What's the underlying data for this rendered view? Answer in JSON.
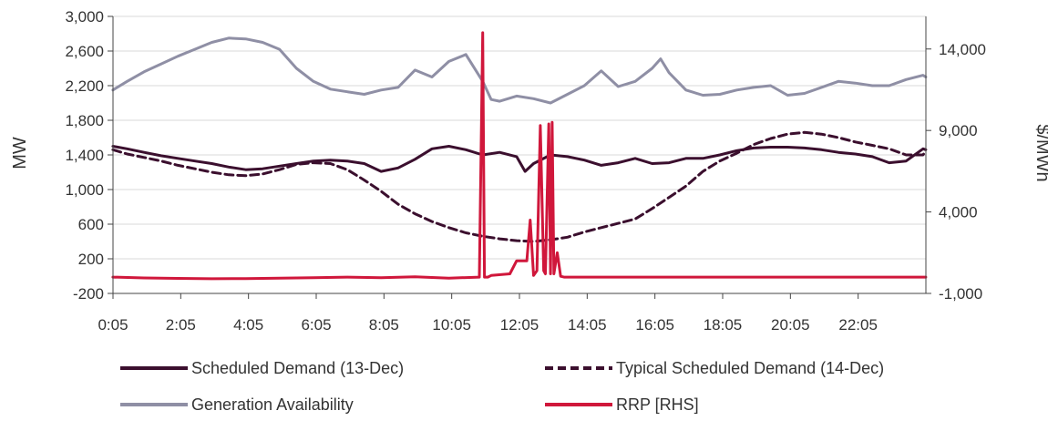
{
  "chart_data": {
    "type": "line",
    "title": "",
    "xlabel": "",
    "ylabel": "MW",
    "y2label": "$/MWh",
    "ylim": [
      -200,
      3000
    ],
    "y2lim": [
      -1000,
      16000
    ],
    "yticks": [
      -200,
      200,
      600,
      1000,
      1400,
      1800,
      2200,
      2600,
      3000
    ],
    "ytick_labels": [
      "-200",
      "200",
      "600",
      "1,000",
      "1,400",
      "1,800",
      "2,200",
      "2,600",
      "3,000"
    ],
    "y2ticks": [
      -1000,
      4000,
      9000,
      14000
    ],
    "y2tick_labels": [
      "-1,000",
      "4,000",
      "9,000",
      "14,000"
    ],
    "x_unit": "hours",
    "xlim": [
      0.083,
      24.083
    ],
    "xticks": [
      0.083,
      2.083,
      4.083,
      6.083,
      8.083,
      10.083,
      12.083,
      14.083,
      16.083,
      18.083,
      20.083,
      22.083
    ],
    "xtick_labels": [
      "0:05",
      "2:05",
      "4:05",
      "6:05",
      "8:05",
      "10:05",
      "12:05",
      "14:05",
      "16:05",
      "18:05",
      "20:05",
      "22:05"
    ],
    "grid": "horizontal",
    "legend_position": "bottom",
    "colors": {
      "scheduled": "#3b0f2e",
      "typical": "#3b0f2e",
      "availability": "#8f8fa5",
      "rrp": "#d0173b",
      "grid": "#d9d9d9",
      "axis": "#444444"
    },
    "series": [
      {
        "name": "Scheduled Demand (13-Dec)",
        "axis": "left",
        "style": "solid",
        "x": [
          0.08,
          0.5,
          1,
          1.5,
          2,
          2.5,
          3,
          3.5,
          4,
          4.5,
          5,
          5.5,
          6,
          6.5,
          7,
          7.5,
          8,
          8.5,
          9,
          9.5,
          10,
          10.5,
          11,
          11.5,
          12,
          12.25,
          12.5,
          13,
          13.5,
          14,
          14.5,
          15,
          15.5,
          16,
          16.5,
          17,
          17.5,
          18,
          18.5,
          19,
          19.5,
          20,
          20.5,
          21,
          21.5,
          22,
          22.5,
          23,
          23.5,
          24,
          24.08
        ],
        "y": [
          1500,
          1470,
          1430,
          1390,
          1360,
          1330,
          1300,
          1260,
          1230,
          1240,
          1270,
          1300,
          1330,
          1340,
          1330,
          1300,
          1210,
          1250,
          1350,
          1470,
          1500,
          1460,
          1400,
          1430,
          1380,
          1210,
          1300,
          1400,
          1380,
          1340,
          1280,
          1310,
          1360,
          1300,
          1310,
          1360,
          1360,
          1400,
          1450,
          1480,
          1490,
          1490,
          1480,
          1460,
          1430,
          1410,
          1380,
          1310,
          1330,
          1470,
          1460
        ]
      },
      {
        "name": "Typical Scheduled Demand (14-Dec)",
        "axis": "left",
        "style": "dashed",
        "x": [
          0.08,
          0.5,
          1,
          1.5,
          2,
          2.5,
          3,
          3.5,
          4,
          4.5,
          5,
          5.5,
          6,
          6.5,
          7,
          7.5,
          8,
          8.5,
          9,
          9.5,
          10,
          10.5,
          11,
          11.5,
          12,
          12.5,
          13,
          13.5,
          14,
          14.5,
          15,
          15.5,
          16,
          16.5,
          17,
          17.5,
          18,
          18.5,
          19,
          19.5,
          20,
          20.5,
          21,
          21.5,
          22,
          22.5,
          23,
          23.5,
          24,
          24.08
        ],
        "y": [
          1460,
          1410,
          1370,
          1330,
          1280,
          1240,
          1200,
          1170,
          1160,
          1180,
          1230,
          1290,
          1310,
          1300,
          1230,
          1110,
          980,
          830,
          720,
          630,
          560,
          500,
          460,
          430,
          410,
          400,
          420,
          450,
          510,
          560,
          610,
          660,
          780,
          910,
          1040,
          1210,
          1330,
          1420,
          1520,
          1590,
          1640,
          1660,
          1640,
          1600,
          1550,
          1510,
          1470,
          1400,
          1400,
          1450
        ]
      },
      {
        "name": "Generation Availability",
        "axis": "left",
        "style": "solid",
        "x": [
          0.08,
          0.5,
          1,
          1.5,
          2,
          2.5,
          3,
          3.5,
          4,
          4.5,
          5,
          5.5,
          6,
          6.5,
          7,
          7.5,
          8,
          8.5,
          9,
          9.5,
          10,
          10.5,
          11,
          11.25,
          11.5,
          12,
          12.5,
          13,
          13.5,
          14,
          14.5,
          15,
          15.5,
          16,
          16.25,
          16.5,
          17,
          17.5,
          18,
          18.5,
          19,
          19.5,
          20,
          20.5,
          21,
          21.5,
          22,
          22.5,
          23,
          23.5,
          24,
          24.08
        ],
        "y": [
          2150,
          2250,
          2360,
          2450,
          2540,
          2620,
          2700,
          2750,
          2740,
          2700,
          2620,
          2400,
          2250,
          2160,
          2130,
          2100,
          2150,
          2180,
          2380,
          2300,
          2480,
          2560,
          2250,
          2040,
          2020,
          2080,
          2050,
          2000,
          2100,
          2200,
          2370,
          2190,
          2250,
          2400,
          2510,
          2350,
          2150,
          2090,
          2100,
          2150,
          2180,
          2200,
          2090,
          2110,
          2180,
          2250,
          2230,
          2200,
          2200,
          2270,
          2320,
          2300
        ]
      },
      {
        "name": "RRP [RHS]",
        "axis": "right",
        "style": "solid",
        "x": [
          0.08,
          1,
          2,
          3,
          4,
          5,
          6,
          7,
          8,
          9,
          10,
          10.9,
          11.0,
          11.05,
          11.15,
          11.25,
          11.8,
          12.0,
          12.3,
          12.4,
          12.5,
          12.6,
          12.7,
          12.8,
          12.85,
          12.95,
          13.0,
          13.05,
          13.1,
          13.2,
          13.3,
          13.4,
          13.5,
          13.6,
          13.8,
          14.0,
          15.0,
          16.0,
          17.0,
          18.0,
          19.0,
          20.0,
          21.0,
          22.0,
          23.0,
          24.08
        ],
        "y": [
          0,
          -50,
          -80,
          -100,
          -90,
          -60,
          -40,
          0,
          -30,
          20,
          -60,
          0,
          15000,
          0,
          0,
          100,
          200,
          1000,
          1000,
          3500,
          100,
          400,
          9300,
          400,
          200,
          9400,
          200,
          9500,
          200,
          1500,
          50,
          0,
          0,
          0,
          0,
          0,
          0,
          0,
          0,
          0,
          0,
          0,
          0,
          0,
          0,
          0
        ]
      }
    ]
  }
}
